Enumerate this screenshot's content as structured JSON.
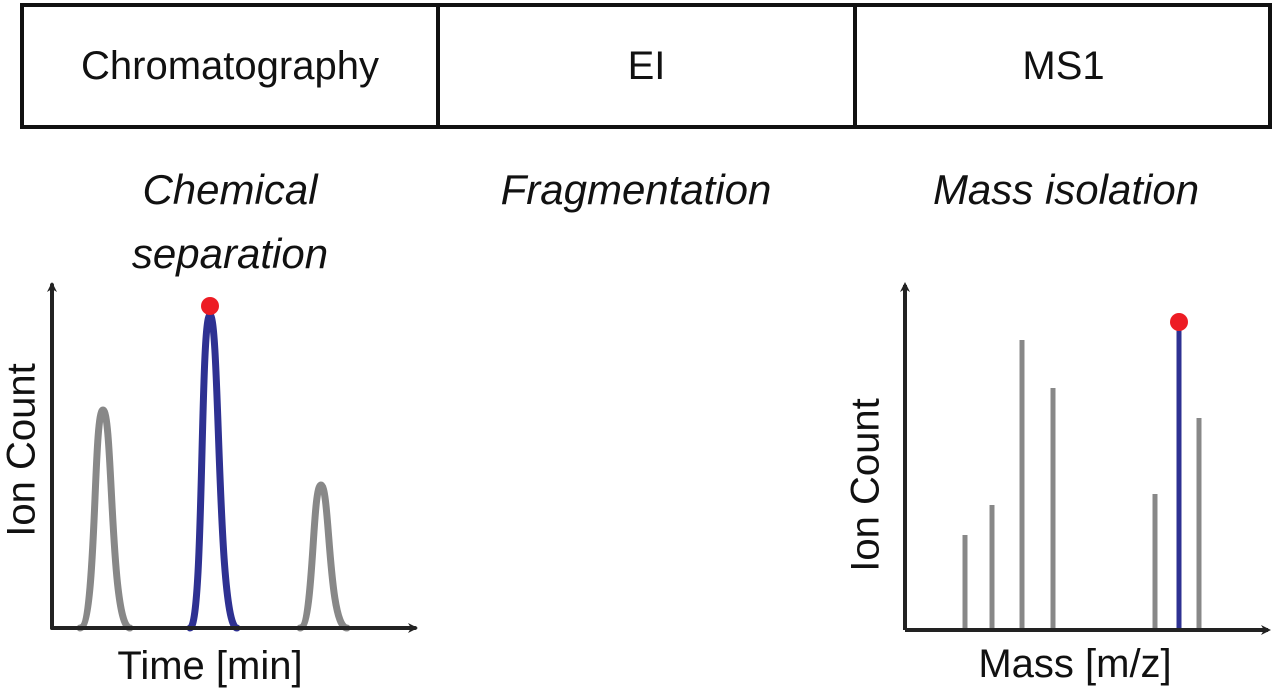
{
  "stages": [
    {
      "label": "Chromatography",
      "caption": "Chemical separation"
    },
    {
      "label": "EI",
      "caption": "Fragmentation"
    },
    {
      "label": "MS1",
      "caption": "Mass isolation"
    }
  ],
  "chromatogram": {
    "y_label": "Ion Count",
    "x_label": "Time [min]"
  },
  "spectrum": {
    "y_label": "Ion Count",
    "x_label": "Mass [m/z]"
  }
}
